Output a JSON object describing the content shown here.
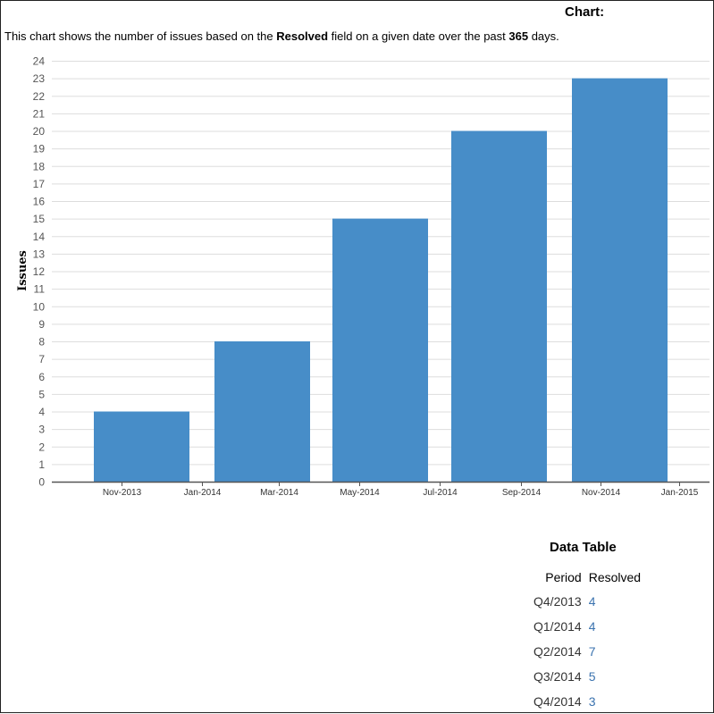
{
  "header": {
    "title": "Chart:",
    "description": {
      "prefix": "This chart shows the number of issues based on the ",
      "field": "Resolved",
      "middle": " field on a given date over the past ",
      "days": "365",
      "suffix": " days."
    }
  },
  "chart_data": {
    "type": "bar",
    "ylabel": "Issues",
    "ylim": [
      0,
      24
    ],
    "yticks": [
      0,
      1,
      2,
      3,
      4,
      5,
      6,
      7,
      8,
      9,
      10,
      11,
      12,
      13,
      14,
      15,
      16,
      17,
      18,
      19,
      20,
      21,
      22,
      23,
      24
    ],
    "xtick_labels": [
      "Nov-2013",
      "Jan-2014",
      "Mar-2014",
      "May-2014",
      "Jul-2014",
      "Sep-2014",
      "Nov-2014",
      "Jan-2015"
    ],
    "categories": [
      "Q4/2013",
      "Q1/2014",
      "Q2/2014",
      "Q3/2014",
      "Q4/2014"
    ],
    "values": [
      4,
      8,
      15,
      20,
      23
    ],
    "grid": true,
    "bar_color": "#478dc8"
  },
  "data_table": {
    "title": "Data Table",
    "headers": {
      "period": "Period",
      "resolved": "Resolved"
    },
    "rows": [
      {
        "period": "Q4/2013",
        "resolved": "4"
      },
      {
        "period": "Q1/2014",
        "resolved": "4"
      },
      {
        "period": "Q2/2014",
        "resolved": "7"
      },
      {
        "period": "Q3/2014",
        "resolved": "5"
      },
      {
        "period": "Q4/2014",
        "resolved": "3"
      }
    ]
  }
}
